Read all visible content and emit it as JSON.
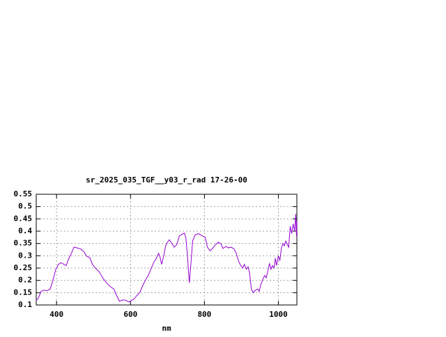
{
  "chart_data": {
    "type": "line",
    "title": "sr_2025_035_TGF__y03_r_rad 17-26-00",
    "xlabel": "nm",
    "xlim": [
      345,
      1050
    ],
    "xticks": [
      400,
      600,
      800,
      1000
    ],
    "ylim": [
      0.1,
      0.55
    ],
    "yticks": [
      0.1,
      0.15,
      0.2,
      0.25,
      0.3,
      0.35,
      0.4,
      0.45,
      0.5,
      0.55
    ],
    "grid": true,
    "series": [
      {
        "color": "#9400d3",
        "x": [
          345,
          350,
          358,
          365,
          375,
          383,
          390,
          398,
          405,
          412,
          420,
          426,
          432,
          440,
          447,
          455,
          465,
          475,
          480,
          490,
          497,
          505,
          515,
          525,
          535,
          545,
          555,
          562,
          570,
          578,
          585,
          595,
          600,
          610,
          618,
          625,
          632,
          640,
          648,
          655,
          662,
          670,
          676,
          680,
          684,
          690,
          695,
          700,
          705,
          712,
          718,
          725,
          732,
          740,
          746,
          750,
          754,
          759,
          763,
          768,
          775,
          784,
          795,
          802,
          808,
          815,
          822,
          830,
          838,
          845,
          850,
          858,
          865,
          872,
          880,
          886,
          892,
          898,
          904,
          908,
          913,
          918,
          922,
          927,
          932,
          938,
          944,
          948,
          952,
          958,
          963,
          967,
          972,
          976,
          980,
          984,
          988,
          992,
          995,
          1000,
          1004,
          1008,
          1012,
          1016,
          1020,
          1024,
          1028,
          1032,
          1036,
          1040,
          1044,
          1047,
          1049,
          1050
        ],
        "values": [
          0.12,
          0.125,
          0.155,
          0.16,
          0.158,
          0.165,
          0.2,
          0.245,
          0.265,
          0.272,
          0.265,
          0.26,
          0.285,
          0.31,
          0.335,
          0.332,
          0.328,
          0.315,
          0.3,
          0.292,
          0.265,
          0.25,
          0.235,
          0.21,
          0.19,
          0.175,
          0.165,
          0.14,
          0.115,
          0.12,
          0.12,
          0.113,
          0.115,
          0.125,
          0.14,
          0.15,
          0.175,
          0.2,
          0.22,
          0.245,
          0.27,
          0.29,
          0.31,
          0.295,
          0.265,
          0.3,
          0.34,
          0.355,
          0.365,
          0.35,
          0.335,
          0.345,
          0.38,
          0.388,
          0.392,
          0.37,
          0.3,
          0.19,
          0.26,
          0.36,
          0.385,
          0.39,
          0.38,
          0.375,
          0.335,
          0.32,
          0.33,
          0.345,
          0.355,
          0.348,
          0.33,
          0.338,
          0.332,
          0.335,
          0.328,
          0.31,
          0.28,
          0.26,
          0.25,
          0.265,
          0.245,
          0.255,
          0.23,
          0.165,
          0.15,
          0.16,
          0.165,
          0.155,
          0.18,
          0.205,
          0.22,
          0.21,
          0.24,
          0.27,
          0.245,
          0.26,
          0.25,
          0.29,
          0.26,
          0.3,
          0.28,
          0.33,
          0.35,
          0.34,
          0.36,
          0.345,
          0.335,
          0.42,
          0.39,
          0.43,
          0.4,
          0.47,
          0.38,
          0.44
        ]
      }
    ]
  }
}
